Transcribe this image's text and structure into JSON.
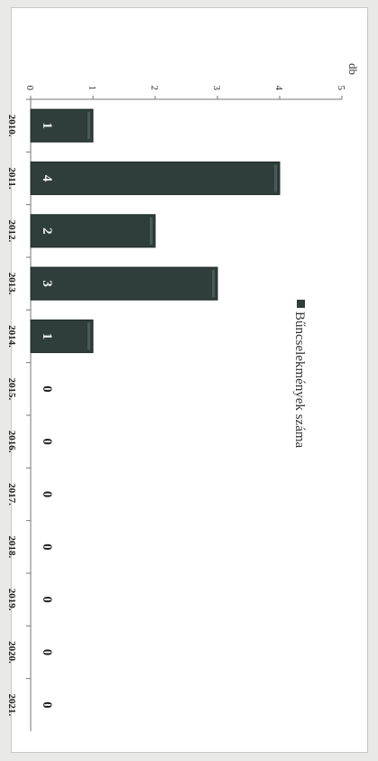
{
  "chart_data": {
    "type": "bar",
    "title": "",
    "ylabel": "db",
    "ylim": [
      0,
      5
    ],
    "yticks": [
      0,
      1,
      2,
      3,
      4,
      5
    ],
    "categories": [
      "2010.",
      "2011.",
      "2012.",
      "2013.",
      "2014.",
      "2015.",
      "2016.",
      "2017.",
      "2018.",
      "2019.",
      "2020.",
      "2021."
    ],
    "series": [
      {
        "name": "Bűncselekmények száma",
        "values": [
          1,
          4,
          2,
          3,
          1,
          0,
          0,
          0,
          0,
          0,
          0,
          0
        ],
        "color": "#2f3e3a"
      }
    ],
    "legend": "top-center",
    "grid": false,
    "data_labels": true
  }
}
